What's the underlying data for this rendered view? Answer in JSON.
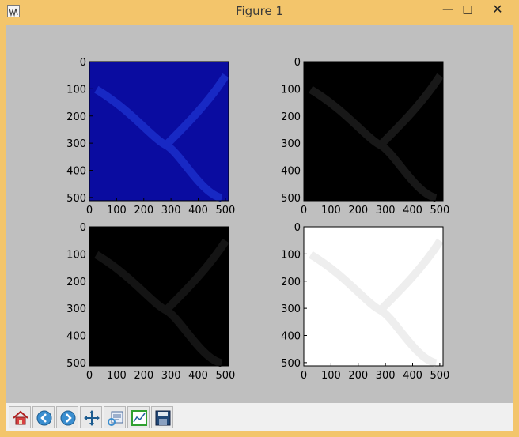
{
  "window": {
    "title": "Figure 1",
    "minimize_glyph": "—",
    "maximize_glyph": "□",
    "close_glyph": "✕"
  },
  "figure": {
    "background": "#bfbfbf",
    "panels": [
      {
        "name": "top-left",
        "colormap": "blue",
        "fill": "#0a0ca0",
        "trace": "#1a2cc8",
        "x_ticks": [
          "0",
          "100",
          "200",
          "300",
          "400",
          "500"
        ],
        "y_ticks": [
          "0",
          "100",
          "200",
          "300",
          "400",
          "500"
        ]
      },
      {
        "name": "top-right",
        "colormap": "black",
        "fill": "#000000",
        "trace": "#1b1b1b",
        "x_ticks": [
          "0",
          "100",
          "200",
          "300",
          "400",
          "500"
        ],
        "y_ticks": [
          "0",
          "100",
          "200",
          "300",
          "400",
          "500"
        ]
      },
      {
        "name": "bottom-left",
        "colormap": "black",
        "fill": "#000000",
        "trace": "#161616",
        "x_ticks": [
          "0",
          "100",
          "200",
          "300",
          "400",
          "500"
        ],
        "y_ticks": [
          "0",
          "100",
          "200",
          "300",
          "400",
          "500"
        ]
      },
      {
        "name": "bottom-right",
        "colormap": "white",
        "fill": "#ffffff",
        "trace": "#ececec",
        "x_ticks": [
          "0",
          "100",
          "200",
          "300",
          "400",
          "500"
        ],
        "y_ticks": [
          "0",
          "100",
          "200",
          "300",
          "400",
          "500"
        ]
      }
    ]
  },
  "toolbar": {
    "buttons": [
      {
        "name": "home-button",
        "icon": "home-icon"
      },
      {
        "name": "back-button",
        "icon": "back-arrow-icon"
      },
      {
        "name": "forward-button",
        "icon": "forward-arrow-icon"
      },
      {
        "name": "pan-button",
        "icon": "move-icon"
      },
      {
        "name": "zoom-button",
        "icon": "zoom-rect-icon"
      },
      {
        "name": "subplots-button",
        "icon": "subplots-icon"
      },
      {
        "name": "save-button",
        "icon": "save-icon"
      }
    ]
  }
}
